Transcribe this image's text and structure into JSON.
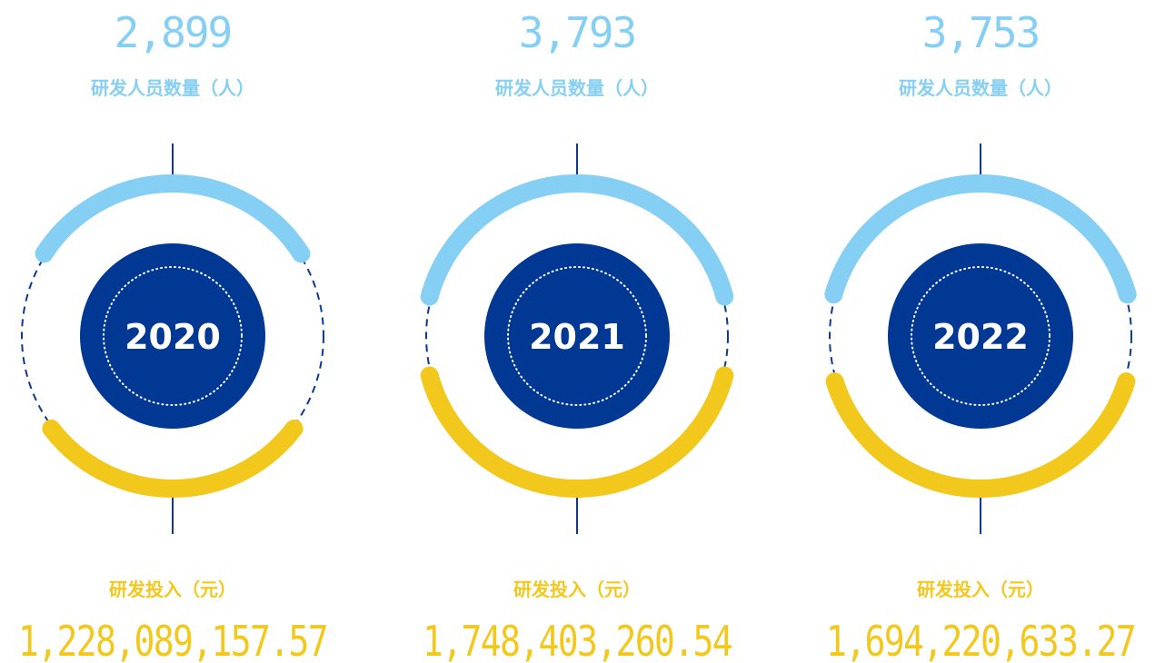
{
  "columns": [
    {
      "staff": "2,899",
      "staff_label": "研发人员数量（人）",
      "year": "2020",
      "investment_label": "研发投入（元）",
      "investment": "1,228,089,157.57"
    },
    {
      "staff": "3,793",
      "staff_label": "研发人员数量（人）",
      "year": "2021",
      "investment_label": "研发投入（元）",
      "investment": "1,748,403,260.54"
    },
    {
      "staff": "3,753",
      "staff_label": "研发人员数量（人）",
      "year": "2022",
      "investment_label": "研发投入（元）",
      "investment": "1,694,220,633.27"
    }
  ]
}
